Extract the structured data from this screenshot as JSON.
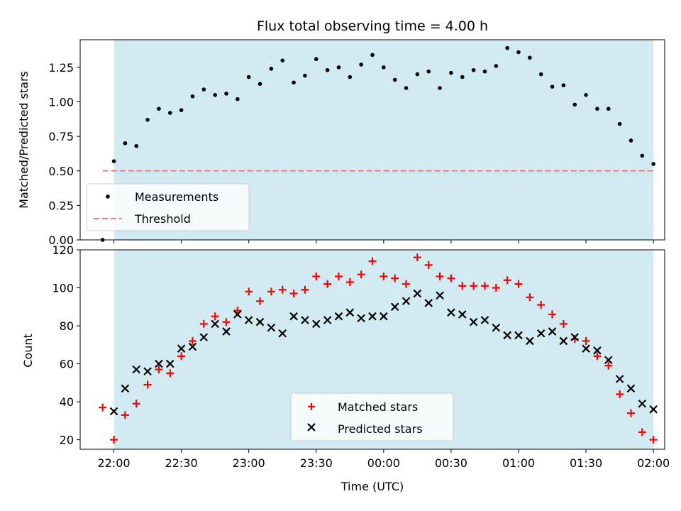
{
  "chart_data": [
    {
      "type": "scatter",
      "title": "Flux total observing time = 4.00 h",
      "ylabel": "Matched/Predicted stars",
      "xlim": [
        "21:45",
        "02:05"
      ],
      "ylim": [
        0,
        1.45
      ],
      "yticks": [
        "0.00",
        "0.25",
        "0.50",
        "0.75",
        "1.00",
        "1.25"
      ],
      "shaded_span": [
        "22:00",
        "02:00"
      ],
      "shade_color": "#add8e6",
      "legend_position": "lower-left",
      "threshold": {
        "name": "Threshold",
        "y": 0.5,
        "x_range": [
          "21:55",
          "02:00"
        ],
        "color": "#f08080",
        "style": "dashed"
      },
      "series": [
        {
          "name": "Measurements",
          "color": "#000000",
          "marker": "dot",
          "points": [
            [
              "21:55",
              0.0
            ],
            [
              "22:00",
              0.57
            ],
            [
              "22:05",
              0.7
            ],
            [
              "22:10",
              0.68
            ],
            [
              "22:15",
              0.87
            ],
            [
              "22:20",
              0.95
            ],
            [
              "22:25",
              0.92
            ],
            [
              "22:30",
              0.94
            ],
            [
              "22:35",
              1.04
            ],
            [
              "22:40",
              1.09
            ],
            [
              "22:45",
              1.05
            ],
            [
              "22:50",
              1.06
            ],
            [
              "22:55",
              1.02
            ],
            [
              "23:00",
              1.18
            ],
            [
              "23:05",
              1.13
            ],
            [
              "23:10",
              1.24
            ],
            [
              "23:15",
              1.3
            ],
            [
              "23:20",
              1.14
            ],
            [
              "23:25",
              1.19
            ],
            [
              "23:30",
              1.31
            ],
            [
              "23:35",
              1.23
            ],
            [
              "23:40",
              1.25
            ],
            [
              "23:45",
              1.18
            ],
            [
              "23:50",
              1.27
            ],
            [
              "23:55",
              1.34
            ],
            [
              "00:00",
              1.25
            ],
            [
              "00:05",
              1.16
            ],
            [
              "00:10",
              1.1
            ],
            [
              "00:15",
              1.2
            ],
            [
              "00:20",
              1.22
            ],
            [
              "00:25",
              1.1
            ],
            [
              "00:30",
              1.21
            ],
            [
              "00:35",
              1.18
            ],
            [
              "00:40",
              1.23
            ],
            [
              "00:45",
              1.22
            ],
            [
              "00:50",
              1.26
            ],
            [
              "00:55",
              1.39
            ],
            [
              "01:00",
              1.36
            ],
            [
              "01:05",
              1.32
            ],
            [
              "01:10",
              1.2
            ],
            [
              "01:15",
              1.11
            ],
            [
              "01:20",
              1.12
            ],
            [
              "01:25",
              0.98
            ],
            [
              "01:30",
              1.05
            ],
            [
              "01:35",
              0.95
            ],
            [
              "01:40",
              0.95
            ],
            [
              "01:45",
              0.84
            ],
            [
              "01:50",
              0.72
            ],
            [
              "01:55",
              0.61
            ],
            [
              "02:00",
              0.55
            ]
          ]
        }
      ]
    },
    {
      "type": "scatter",
      "xlabel": "Time (UTC)",
      "ylabel": "Count",
      "xlim": [
        "21:45",
        "02:05"
      ],
      "ylim": [
        15,
        120
      ],
      "yticks": [
        "20",
        "40",
        "60",
        "80",
        "100",
        "120"
      ],
      "xticks": [
        "22:00",
        "22:30",
        "23:00",
        "23:30",
        "00:00",
        "00:30",
        "01:00",
        "01:30",
        "02:00"
      ],
      "shaded_span": [
        "22:00",
        "02:00"
      ],
      "shade_color": "#add8e6",
      "legend_position": "lower-center",
      "series": [
        {
          "name": "Matched stars",
          "color": "#ff0000",
          "marker": "plus",
          "points": [
            [
              "21:55",
              37
            ],
            [
              "22:00",
              20
            ],
            [
              "22:05",
              33
            ],
            [
              "22:10",
              39
            ],
            [
              "22:15",
              49
            ],
            [
              "22:20",
              57
            ],
            [
              "22:25",
              55
            ],
            [
              "22:30",
              64
            ],
            [
              "22:35",
              72
            ],
            [
              "22:40",
              81
            ],
            [
              "22:45",
              85
            ],
            [
              "22:50",
              82
            ],
            [
              "22:55",
              88
            ],
            [
              "23:00",
              98
            ],
            [
              "23:05",
              93
            ],
            [
              "23:10",
              98
            ],
            [
              "23:15",
              99
            ],
            [
              "23:20",
              97
            ],
            [
              "23:25",
              99
            ],
            [
              "23:30",
              106
            ],
            [
              "23:35",
              102
            ],
            [
              "23:40",
              106
            ],
            [
              "23:45",
              103
            ],
            [
              "23:50",
              107
            ],
            [
              "23:55",
              114
            ],
            [
              "00:00",
              106
            ],
            [
              "00:05",
              105
            ],
            [
              "00:10",
              102
            ],
            [
              "00:15",
              116
            ],
            [
              "00:20",
              112
            ],
            [
              "00:25",
              106
            ],
            [
              "00:30",
              105
            ],
            [
              "00:35",
              101
            ],
            [
              "00:40",
              101
            ],
            [
              "00:45",
              101
            ],
            [
              "00:50",
              100
            ],
            [
              "00:55",
              104
            ],
            [
              "01:00",
              102
            ],
            [
              "01:05",
              95
            ],
            [
              "01:10",
              91
            ],
            [
              "01:15",
              86
            ],
            [
              "01:20",
              81
            ],
            [
              "01:25",
              73
            ],
            [
              "01:30",
              72
            ],
            [
              "01:35",
              64
            ],
            [
              "01:40",
              59
            ],
            [
              "01:45",
              44
            ],
            [
              "01:50",
              34
            ],
            [
              "01:55",
              24
            ],
            [
              "02:00",
              20
            ]
          ]
        },
        {
          "name": "Predicted stars",
          "color": "#000000",
          "marker": "x",
          "points": [
            [
              "22:00",
              35
            ],
            [
              "22:05",
              47
            ],
            [
              "22:10",
              57
            ],
            [
              "22:15",
              56
            ],
            [
              "22:20",
              60
            ],
            [
              "22:25",
              60
            ],
            [
              "22:30",
              68
            ],
            [
              "22:35",
              69
            ],
            [
              "22:40",
              74
            ],
            [
              "22:45",
              81
            ],
            [
              "22:50",
              77
            ],
            [
              "22:55",
              86
            ],
            [
              "23:00",
              83
            ],
            [
              "23:05",
              82
            ],
            [
              "23:10",
              79
            ],
            [
              "23:15",
              76
            ],
            [
              "23:20",
              85
            ],
            [
              "23:25",
              83
            ],
            [
              "23:30",
              81
            ],
            [
              "23:35",
              83
            ],
            [
              "23:40",
              85
            ],
            [
              "23:45",
              87
            ],
            [
              "23:50",
              84
            ],
            [
              "23:55",
              85
            ],
            [
              "00:00",
              85
            ],
            [
              "00:05",
              90
            ],
            [
              "00:10",
              93
            ],
            [
              "00:15",
              97
            ],
            [
              "00:20",
              92
            ],
            [
              "00:25",
              96
            ],
            [
              "00:30",
              87
            ],
            [
              "00:35",
              86
            ],
            [
              "00:40",
              82
            ],
            [
              "00:45",
              83
            ],
            [
              "00:50",
              79
            ],
            [
              "00:55",
              75
            ],
            [
              "01:00",
              75
            ],
            [
              "01:05",
              72
            ],
            [
              "01:10",
              76
            ],
            [
              "01:15",
              77
            ],
            [
              "01:20",
              72
            ],
            [
              "01:25",
              74
            ],
            [
              "01:30",
              68
            ],
            [
              "01:35",
              67
            ],
            [
              "01:40",
              62
            ],
            [
              "01:45",
              52
            ],
            [
              "01:50",
              47
            ],
            [
              "01:55",
              39
            ],
            [
              "02:00",
              36
            ]
          ]
        }
      ]
    }
  ]
}
